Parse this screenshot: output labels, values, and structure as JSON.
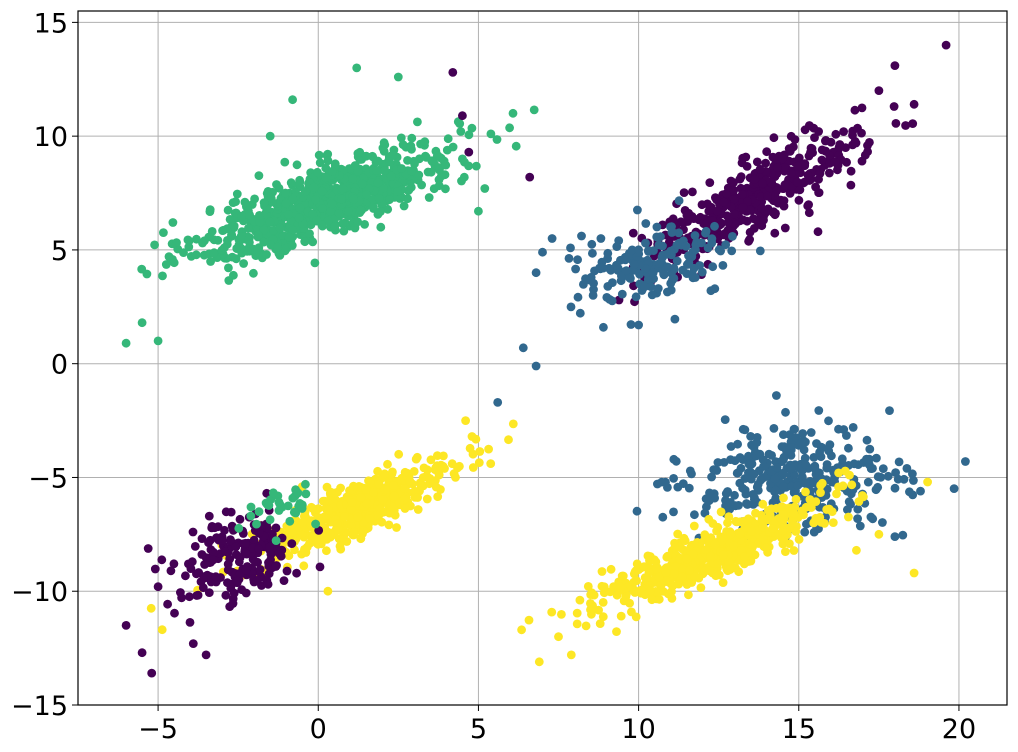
{
  "chart_data": {
    "type": "scatter",
    "title": "",
    "xlabel": "",
    "ylabel": "",
    "xlim": [
      -7.5,
      21.5
    ],
    "ylim": [
      -15,
      15.5
    ],
    "x_ticks": [
      -5,
      0,
      5,
      10,
      15,
      20
    ],
    "y_ticks": [
      -15,
      -10,
      -5,
      0,
      5,
      10,
      15
    ],
    "x_tick_labels": [
      "−5",
      "0",
      "5",
      "10",
      "15",
      "20"
    ],
    "y_tick_labels": [
      "−15",
      "−10",
      "−5",
      "0",
      "5",
      "10",
      "15"
    ],
    "grid": true,
    "colors": {
      "purple": "#440154",
      "blue": "#31688e",
      "green": "#35b779",
      "yellow": "#fde725",
      "grid": "#b0b0b0"
    },
    "clusters": [
      {
        "color": "green",
        "n": 800,
        "center": [
          0.3,
          7.2
        ],
        "sd": [
          2.0,
          1.3
        ],
        "corr": 0.8,
        "outliers": [
          [
            -6.0,
            0.9
          ],
          [
            -5.0,
            1.0
          ],
          [
            -5.5,
            1.8
          ],
          [
            2.5,
            12.6
          ],
          [
            5.0,
            6.7
          ],
          [
            5.2,
            7.7
          ],
          [
            4.5,
            9.0
          ],
          [
            1.2,
            13.0
          ],
          [
            -1.5,
            10.0
          ],
          [
            -0.8,
            11.6
          ]
        ]
      },
      {
        "color": "purple",
        "n": 420,
        "center": [
          13.6,
          7.3
        ],
        "sd": [
          1.7,
          1.5
        ],
        "corr": 0.86,
        "outliers": [
          [
            19.6,
            14.0
          ],
          [
            18.6,
            11.4
          ],
          [
            18.0,
            13.1
          ],
          [
            17.5,
            12.0
          ],
          [
            6.6,
            8.2
          ],
          [
            4.7,
            9.3
          ],
          [
            4.2,
            12.8
          ],
          [
            4.5,
            10.9
          ],
          [
            15.6,
            5.8
          ],
          [
            16.4,
            10.2
          ]
        ]
      },
      {
        "color": "blue",
        "n": 170,
        "center": [
          10.4,
          4.3
        ],
        "sd": [
          1.3,
          0.85
        ],
        "corr": 0.3,
        "outliers": [
          [
            6.4,
            0.7
          ],
          [
            6.8,
            -0.1
          ],
          [
            5.6,
            -1.7
          ],
          [
            7.0,
            4.9
          ],
          [
            7.3,
            5.5
          ],
          [
            8.9,
            1.6
          ],
          [
            10.0,
            1.7
          ],
          [
            6.8,
            4.0
          ]
        ]
      },
      {
        "color": "yellow",
        "n": 480,
        "center": [
          1.2,
          -6.4
        ],
        "sd": [
          1.55,
          1.1
        ],
        "corr": 0.84,
        "outliers": [
          [
            4.8,
            -3.2
          ],
          [
            4.6,
            -2.5
          ],
          [
            0.3,
            -10.0
          ],
          [
            -0.5,
            -5.4
          ]
        ]
      },
      {
        "color": "purple",
        "n": 190,
        "center": [
          -2.6,
          -8.6
        ],
        "sd": [
          1.0,
          1.05
        ],
        "corr": 0.3,
        "outliers": [
          [
            -6.0,
            -11.5
          ],
          [
            -5.2,
            -13.6
          ],
          [
            -5.5,
            -12.7
          ],
          [
            -5.0,
            -9.8
          ],
          [
            -3.4,
            -6.7
          ],
          [
            -3.5,
            -12.8
          ],
          [
            -3.9,
            -12.3
          ],
          [
            -4.6,
            -9.1
          ]
        ]
      },
      {
        "color": "green",
        "n": 30,
        "center": [
          -1.0,
          -6.3
        ],
        "sd": [
          0.65,
          0.45
        ],
        "corr": 0.2,
        "outliers": [
          [
            -0.4,
            -5.3
          ],
          [
            -2.1,
            -6.3
          ]
        ]
      },
      {
        "color": "blue",
        "n": 330,
        "center": [
          14.8,
          -5.2
        ],
        "sd": [
          1.6,
          1.1
        ],
        "corr": 0.05,
        "outliers": [
          [
            20.2,
            -4.3
          ],
          [
            18.8,
            -5.6
          ],
          [
            18.0,
            -7.6
          ],
          [
            14.3,
            -1.4
          ],
          [
            11.1,
            -4.2
          ],
          [
            17.3,
            -4.6
          ],
          [
            16.7,
            -2.8
          ]
        ]
      },
      {
        "color": "yellow",
        "n": 540,
        "center": [
          12.3,
          -8.3
        ],
        "sd": [
          1.8,
          1.2
        ],
        "corr": 0.87,
        "outliers": [
          [
            6.9,
            -13.1
          ],
          [
            7.9,
            -12.8
          ],
          [
            7.5,
            -12.0
          ],
          [
            18.6,
            -9.2
          ],
          [
            16.8,
            -8.2
          ],
          [
            17.5,
            -7.5
          ]
        ]
      }
    ]
  }
}
